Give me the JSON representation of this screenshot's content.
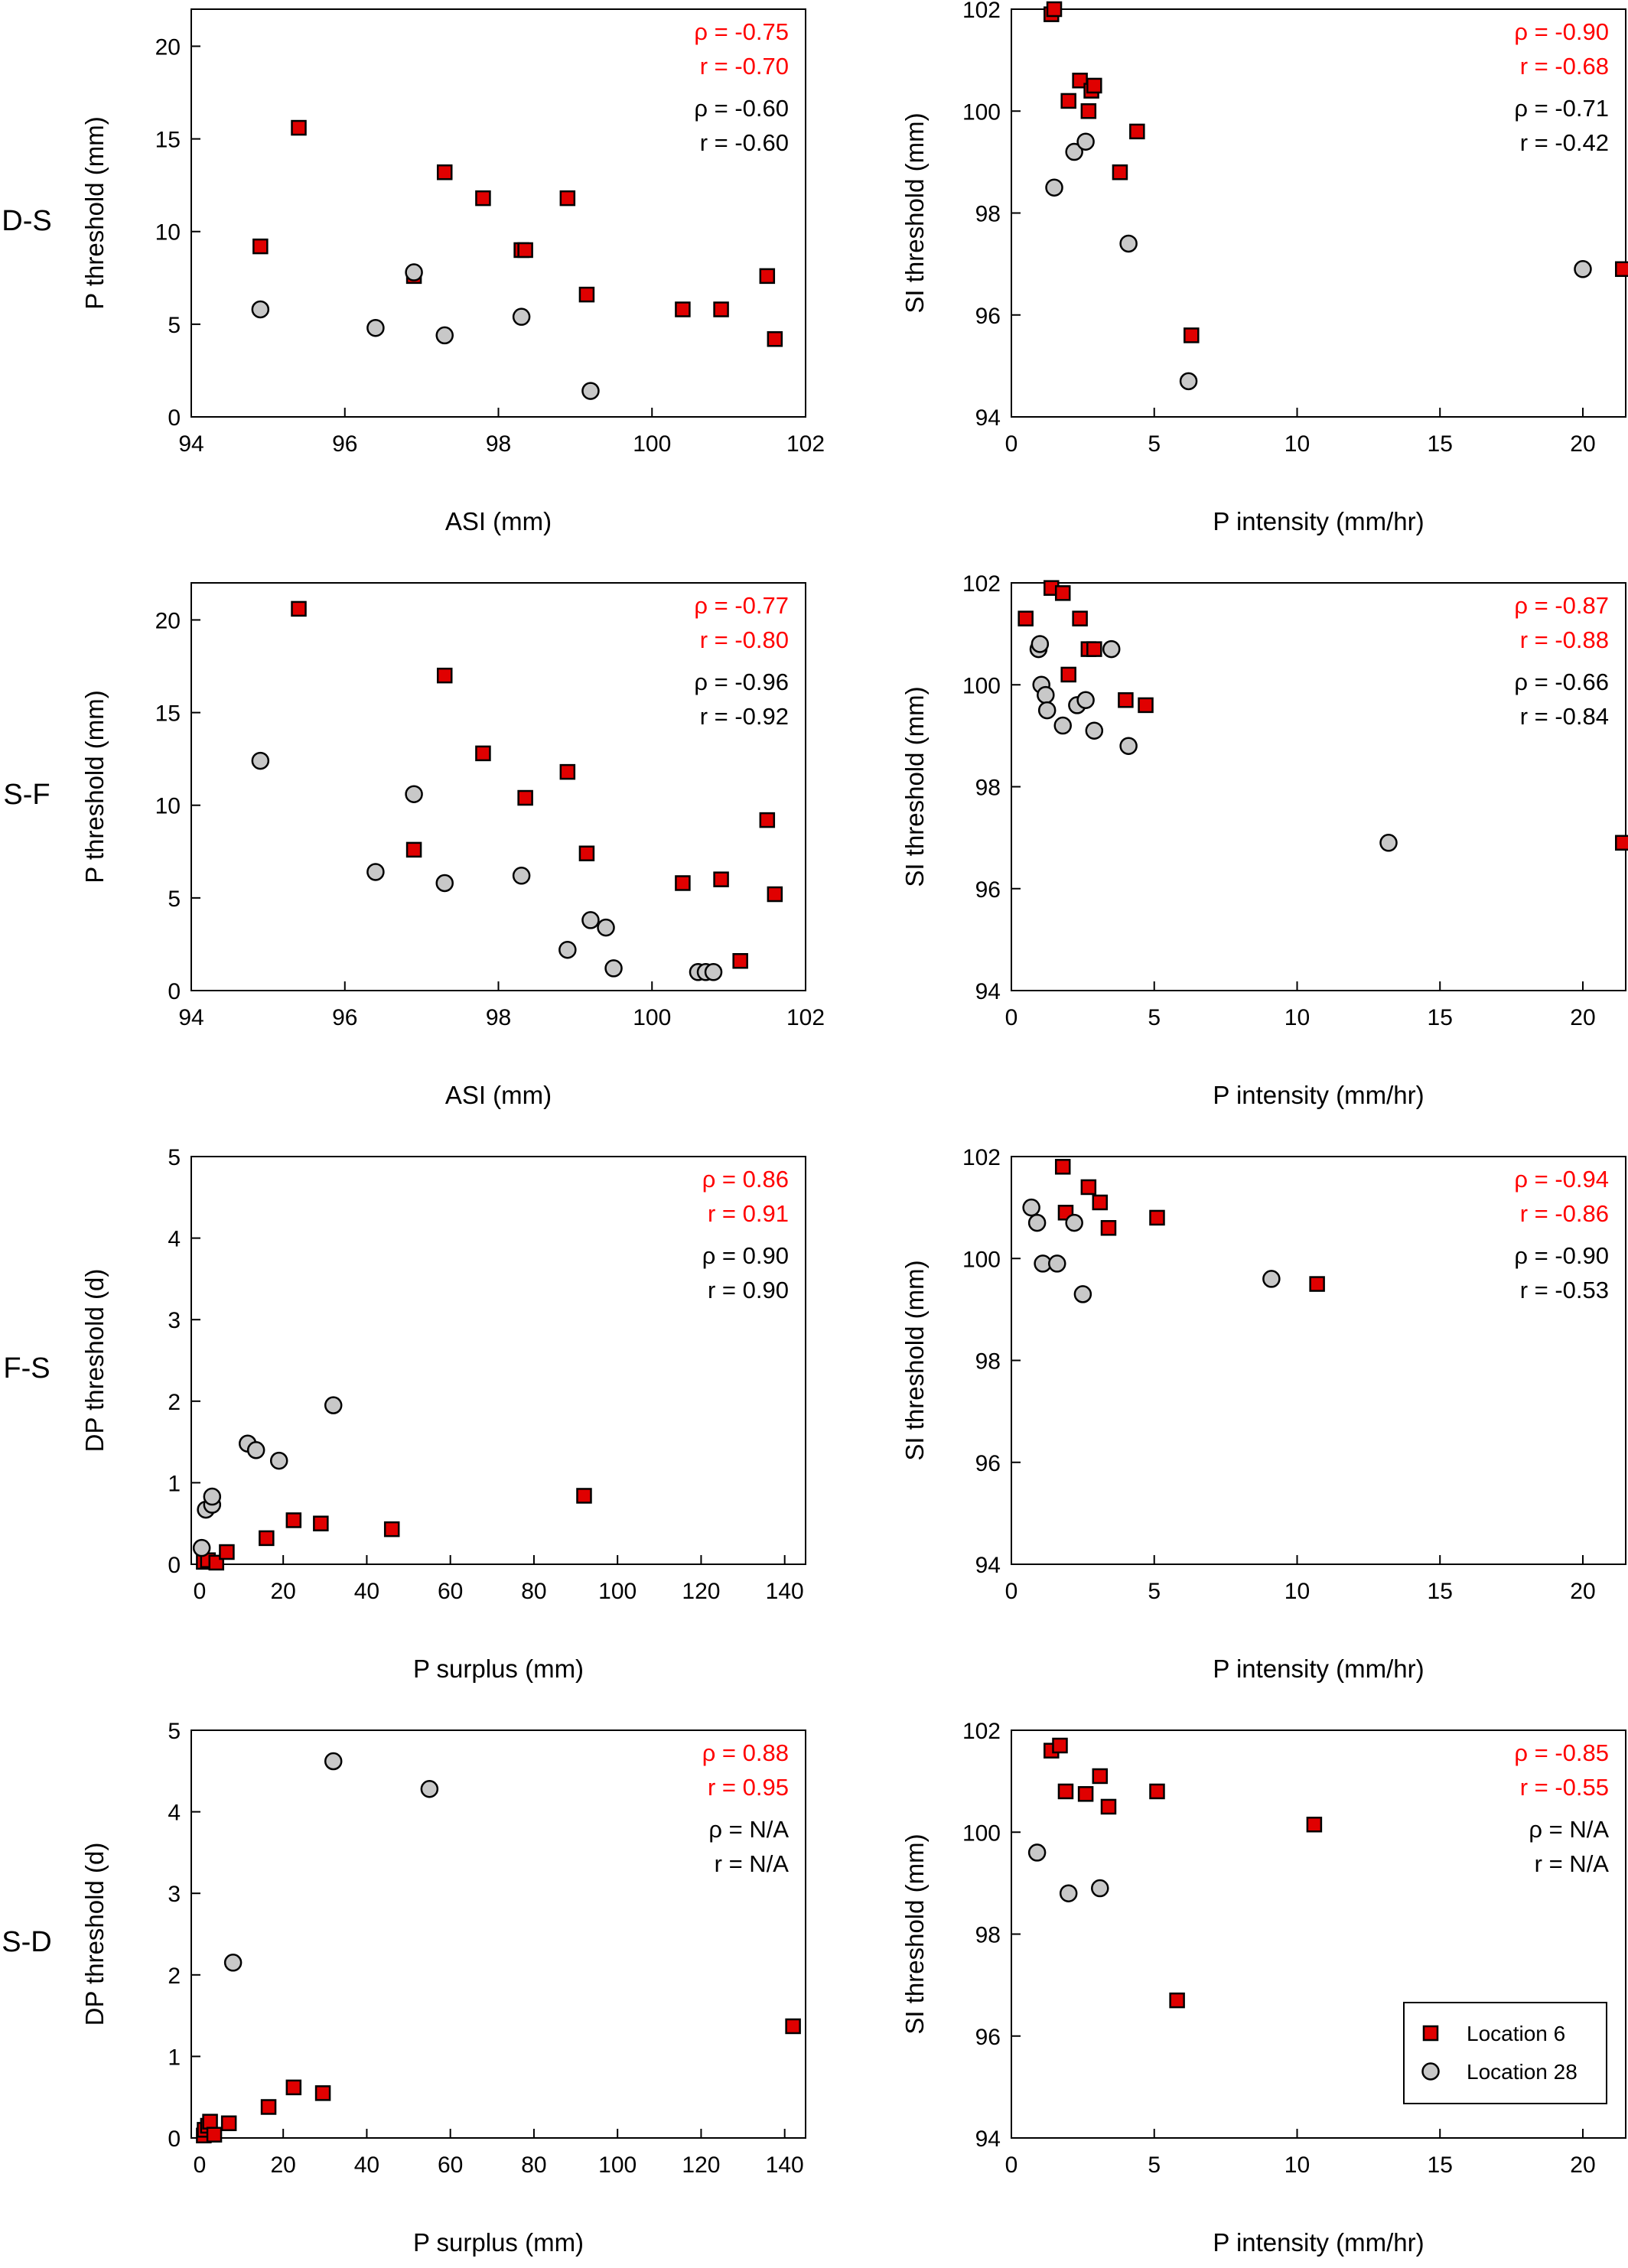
{
  "row_labels": [
    "D-S",
    "S-F",
    "F-S",
    "S-D"
  ],
  "legend": {
    "entries": [
      {
        "label": "Location 6",
        "marker": "square",
        "color": "#e00000"
      },
      {
        "label": "Location 28",
        "marker": "circle",
        "color": "#c8c8c8"
      }
    ]
  },
  "colors": {
    "location6": "#e00000",
    "location28": "#c8c8c8",
    "stat_location6": "#ff0000",
    "stat_location28": "#000000"
  },
  "chart_data": [
    {
      "type": "scatter",
      "xlabel": "ASI (mm)",
      "ylabel": "P threshold (mm)",
      "xlim": [
        94,
        102
      ],
      "ylim": [
        0,
        22
      ],
      "xticks": [
        94,
        96,
        98,
        100,
        102
      ],
      "yticks": [
        0,
        5,
        10,
        15,
        20
      ],
      "stats": [
        "ρ = -0.75",
        "r = -0.70",
        "ρ = -0.60",
        "r = -0.60"
      ],
      "series": [
        {
          "name": "Location 6",
          "marker": "square",
          "x": [
            94.9,
            95.4,
            96.9,
            97.3,
            97.8,
            98.3,
            98.35,
            98.9,
            99.15,
            100.4,
            100.9,
            101.5,
            101.6
          ],
          "y": [
            9.2,
            15.6,
            7.6,
            13.2,
            11.8,
            9.0,
            9.0,
            11.8,
            6.6,
            5.8,
            5.8,
            7.6,
            4.2
          ]
        },
        {
          "name": "Location 28",
          "marker": "circle",
          "x": [
            94.9,
            96.4,
            96.9,
            97.3,
            98.3,
            99.2
          ],
          "y": [
            5.8,
            4.8,
            7.8,
            4.4,
            5.4,
            1.4
          ]
        }
      ]
    },
    {
      "type": "scatter",
      "xlabel": "P intensity (mm/hr)",
      "ylabel": "SI threshold (mm)",
      "xlim": [
        0,
        21.5
      ],
      "ylim": [
        94,
        102
      ],
      "xticks": [
        0,
        5,
        10,
        15,
        20
      ],
      "yticks": [
        94,
        96,
        98,
        100,
        102
      ],
      "stats": [
        "ρ = -0.90",
        "r = -0.68",
        "ρ = -0.71",
        "r = -0.42"
      ],
      "series": [
        {
          "name": "Location 6",
          "marker": "square",
          "x": [
            1.4,
            1.5,
            2.0,
            2.4,
            2.7,
            2.8,
            2.9,
            3.8,
            4.4,
            6.3,
            21.4
          ],
          "y": [
            101.9,
            102.0,
            100.2,
            100.6,
            100.0,
            100.4,
            100.5,
            98.8,
            99.6,
            95.6,
            96.9
          ]
        },
        {
          "name": "Location 28",
          "marker": "circle",
          "x": [
            1.5,
            2.2,
            2.6,
            4.1,
            6.2,
            20.0
          ],
          "y": [
            98.5,
            99.2,
            99.4,
            97.4,
            94.7,
            96.9
          ]
        }
      ]
    },
    {
      "type": "scatter",
      "xlabel": "ASI (mm)",
      "ylabel": "P threshold (mm)",
      "xlim": [
        94,
        102
      ],
      "ylim": [
        0,
        22
      ],
      "xticks": [
        94,
        96,
        98,
        100,
        102
      ],
      "yticks": [
        0,
        5,
        10,
        15,
        20
      ],
      "stats": [
        "ρ = -0.77",
        "r = -0.80",
        "ρ = -0.96",
        "r = -0.92"
      ],
      "series": [
        {
          "name": "Location 6",
          "marker": "square",
          "x": [
            95.4,
            96.9,
            97.3,
            97.8,
            98.35,
            98.9,
            99.15,
            100.4,
            100.9,
            101.15,
            101.5,
            101.6
          ],
          "y": [
            20.6,
            7.6,
            17.0,
            12.8,
            10.4,
            11.8,
            7.4,
            5.8,
            6.0,
            1.6,
            9.2,
            5.2
          ]
        },
        {
          "name": "Location 28",
          "marker": "circle",
          "x": [
            94.9,
            96.4,
            96.9,
            97.3,
            98.3,
            98.9,
            99.2,
            99.4,
            99.5,
            100.6,
            100.7,
            100.8
          ],
          "y": [
            12.4,
            6.4,
            10.6,
            5.8,
            6.2,
            2.2,
            3.8,
            3.4,
            1.2,
            1.0,
            1.0,
            1.0
          ]
        }
      ]
    },
    {
      "type": "scatter",
      "xlabel": "P intensity (mm/hr)",
      "ylabel": "SI threshold (mm)",
      "xlim": [
        0,
        21.5
      ],
      "ylim": [
        94,
        102
      ],
      "xticks": [
        0,
        5,
        10,
        15,
        20
      ],
      "yticks": [
        94,
        96,
        98,
        100,
        102
      ],
      "stats": [
        "ρ = -0.87",
        "r = -0.88",
        "ρ = -0.66",
        "r = -0.84"
      ],
      "series": [
        {
          "name": "Location 6",
          "marker": "square",
          "x": [
            0.5,
            1.4,
            1.8,
            2.0,
            2.4,
            2.7,
            2.9,
            4.0,
            4.7,
            21.4
          ],
          "y": [
            101.3,
            101.9,
            101.8,
            100.2,
            101.3,
            100.7,
            100.7,
            99.7,
            99.6,
            96.9
          ]
        },
        {
          "name": "Location 28",
          "marker": "circle",
          "x": [
            0.95,
            1.0,
            1.05,
            1.2,
            1.25,
            1.8,
            2.3,
            2.6,
            2.9,
            3.5,
            4.1,
            13.2
          ],
          "y": [
            100.7,
            100.8,
            100.0,
            99.8,
            99.5,
            99.2,
            99.6,
            99.7,
            99.1,
            100.7,
            98.8,
            96.9
          ]
        }
      ]
    },
    {
      "type": "scatter",
      "xlabel": "P surplus (mm)",
      "ylabel": "DP threshold (d)",
      "xlim": [
        -2,
        145
      ],
      "ylim": [
        0,
        5
      ],
      "xticks": [
        0,
        20,
        40,
        60,
        80,
        100,
        120,
        140
      ],
      "yticks": [
        0,
        1,
        2,
        3,
        4,
        5
      ],
      "stats": [
        "ρ = 0.86",
        "r = 0.91",
        "ρ = 0.90",
        "r = 0.90"
      ],
      "series": [
        {
          "name": "Location 6",
          "marker": "square",
          "x": [
            1.0,
            2.0,
            4.0,
            6.5,
            16.0,
            22.5,
            29.0,
            46.0,
            92.0
          ],
          "y": [
            0.03,
            0.05,
            0.02,
            0.15,
            0.32,
            0.54,
            0.5,
            0.43,
            0.84
          ]
        },
        {
          "name": "Location 28",
          "marker": "circle",
          "x": [
            0.5,
            1.5,
            3.0,
            3.0,
            11.5,
            13.5,
            19.0,
            32.0
          ],
          "y": [
            0.2,
            0.67,
            0.73,
            0.83,
            1.48,
            1.4,
            1.27,
            1.95
          ]
        }
      ]
    },
    {
      "type": "scatter",
      "xlabel": "P intensity (mm/hr)",
      "ylabel": "SI threshold (mm)",
      "xlim": [
        0,
        21.5
      ],
      "ylim": [
        94,
        102
      ],
      "xticks": [
        0,
        5,
        10,
        15,
        20
      ],
      "yticks": [
        94,
        96,
        98,
        100,
        102
      ],
      "stats": [
        "ρ = -0.94",
        "r = -0.86",
        "ρ = -0.90",
        "r = -0.53"
      ],
      "series": [
        {
          "name": "Location 6",
          "marker": "square",
          "x": [
            1.8,
            1.9,
            2.7,
            3.1,
            3.4,
            5.1,
            10.7
          ],
          "y": [
            101.8,
            100.9,
            101.4,
            101.1,
            100.6,
            100.8,
            99.5
          ]
        },
        {
          "name": "Location 28",
          "marker": "circle",
          "x": [
            0.7,
            0.9,
            1.1,
            1.6,
            2.2,
            2.5,
            9.1
          ],
          "y": [
            101.0,
            100.7,
            99.9,
            99.9,
            100.7,
            99.3,
            99.6
          ]
        }
      ]
    },
    {
      "type": "scatter",
      "xlabel": "P surplus (mm)",
      "ylabel": "DP threshold (d)",
      "xlim": [
        -2,
        145
      ],
      "ylim": [
        0,
        5
      ],
      "xticks": [
        0,
        20,
        40,
        60,
        80,
        100,
        120,
        140
      ],
      "yticks": [
        0,
        1,
        2,
        3,
        4,
        5
      ],
      "stats": [
        "ρ = 0.88",
        "r = 0.95",
        "ρ = N/A",
        "r = N/A"
      ],
      "series": [
        {
          "name": "Location 6",
          "marker": "square",
          "x": [
            1.0,
            1.2,
            2.0,
            2.5,
            3.5,
            7.0,
            16.5,
            22.5,
            29.5,
            142.0
          ],
          "y": [
            0.03,
            0.1,
            0.15,
            0.2,
            0.04,
            0.18,
            0.38,
            0.62,
            0.55,
            1.37
          ]
        },
        {
          "name": "Location 28",
          "marker": "circle",
          "x": [
            8.0,
            32.0,
            55.0
          ],
          "y": [
            2.15,
            4.62,
            4.28
          ]
        }
      ]
    },
    {
      "type": "scatter",
      "xlabel": "P intensity (mm/hr)",
      "ylabel": "SI threshold (mm)",
      "xlim": [
        0,
        21.5
      ],
      "ylim": [
        94,
        102
      ],
      "xticks": [
        0,
        5,
        10,
        15,
        20
      ],
      "yticks": [
        94,
        96,
        98,
        100,
        102
      ],
      "stats": [
        "ρ = -0.85",
        "r = -0.55",
        "ρ = N/A",
        "r = N/A"
      ],
      "legend": true,
      "series": [
        {
          "name": "Location 6",
          "marker": "square",
          "x": [
            1.4,
            1.7,
            1.9,
            2.6,
            3.1,
            3.4,
            5.1,
            5.8,
            10.6
          ],
          "y": [
            101.6,
            101.7,
            100.8,
            100.75,
            101.1,
            100.5,
            100.8,
            96.7,
            100.15
          ]
        },
        {
          "name": "Location 28",
          "marker": "circle",
          "x": [
            0.9,
            2.0,
            3.1
          ],
          "y": [
            99.6,
            98.8,
            98.9
          ]
        }
      ]
    }
  ]
}
